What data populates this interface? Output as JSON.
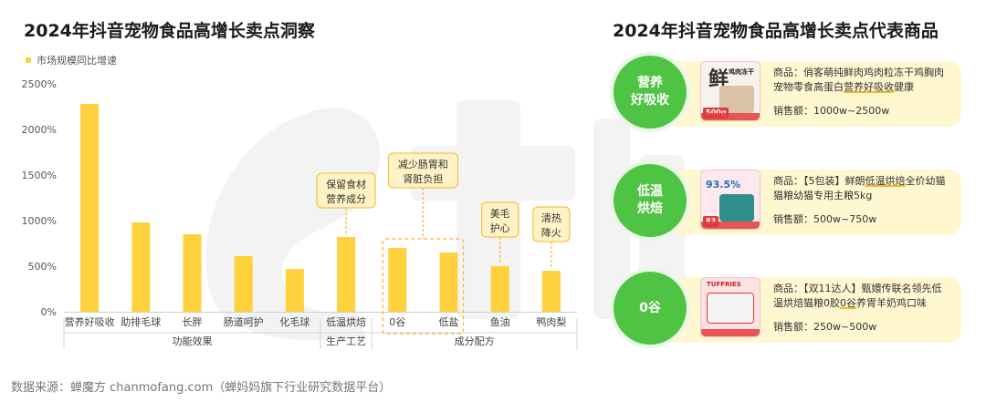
{
  "left_title": "2024年抖音宠物食品高增长卖点洞察",
  "right_title": "2024年抖音宠物食品高增长卖点代表商品",
  "footnote": "数据来源：蝉魔方 chanmofang.com（蝉妈妈旗下行业研究数据平台）",
  "colors": {
    "bar": "#ffd23d",
    "callout_bg": "#fff3c6",
    "callout_border": "#f0b92a",
    "tag": "#4fc343",
    "card_bg": "#fff7d0"
  },
  "chart_data": {
    "type": "bar",
    "series": [
      {
        "name": "市场规模同比增速",
        "values": [
          2280,
          980,
          850,
          610,
          470,
          820,
          700,
          650,
          500,
          450
        ]
      }
    ],
    "categories": [
      "营养好吸收",
      "助排毛球",
      "长胖",
      "肠道呵护",
      "化毛球",
      "低温烘焙",
      "0谷",
      "低盐",
      "鱼油",
      "鸭肉梨"
    ],
    "unit": "%",
    "ylim": [
      0,
      2500
    ],
    "yticks": [
      "2500%",
      "2000%",
      "1500%",
      "1000%",
      "500%",
      "0%"
    ],
    "groups": [
      {
        "label": "功能效果",
        "from": 0,
        "to": 4
      },
      {
        "label": "生产工艺",
        "from": 5,
        "to": 5
      },
      {
        "label": "成分配方",
        "from": 6,
        "to": 9
      }
    ],
    "callouts": [
      {
        "lines": [
          "保留食材",
          "营养成分"
        ],
        "bar": 5
      },
      {
        "lines": [
          "减少肠胃和",
          "肾脏负担"
        ],
        "bar": 6,
        "span_to": 7
      },
      {
        "lines": [
          "美毛",
          "护心"
        ],
        "bar": 8
      },
      {
        "lines": [
          "清热",
          "降火"
        ],
        "bar": 9
      }
    ]
  },
  "products": [
    {
      "tag": [
        "营养",
        "好吸收"
      ],
      "desc_pre": "商品：俏客萌纯鲜肉鸡肉粒冻干鸡胸肉宠物零食高蛋白",
      "desc_hl": "营养好吸收",
      "desc_post": "健康",
      "sales": "销售额：1000w~2500w",
      "thumb": {
        "bg": "#f7f2ec",
        "big": "鲜",
        "line1": "鸡肉冻干",
        "badge": "500g"
      }
    },
    {
      "tag": [
        "低温",
        "烘焙"
      ],
      "desc_pre": "商品：【5包装】鲜朗",
      "desc_hl": "低温烘焙",
      "desc_post": "全价幼猫猫粮幼猫专用主粮5kg",
      "sales": "销售额：500w~750w",
      "thumb": {
        "bg": "#fde8ee",
        "big": "93.5%",
        "line1": "",
        "badge": "83"
      }
    },
    {
      "tag": [
        "0谷"
      ],
      "desc_pre": "商品：【双11达人】甄嬛传联名领先低温烘焙猫粮0胶",
      "desc_hl": "0谷",
      "desc_post": "养胃羊奶鸡口味",
      "sales": "销售额：250w~500w",
      "thumb": {
        "bg": "#fbe3e3",
        "big": "TUFFRIES",
        "line1": "",
        "badge": ""
      }
    }
  ]
}
